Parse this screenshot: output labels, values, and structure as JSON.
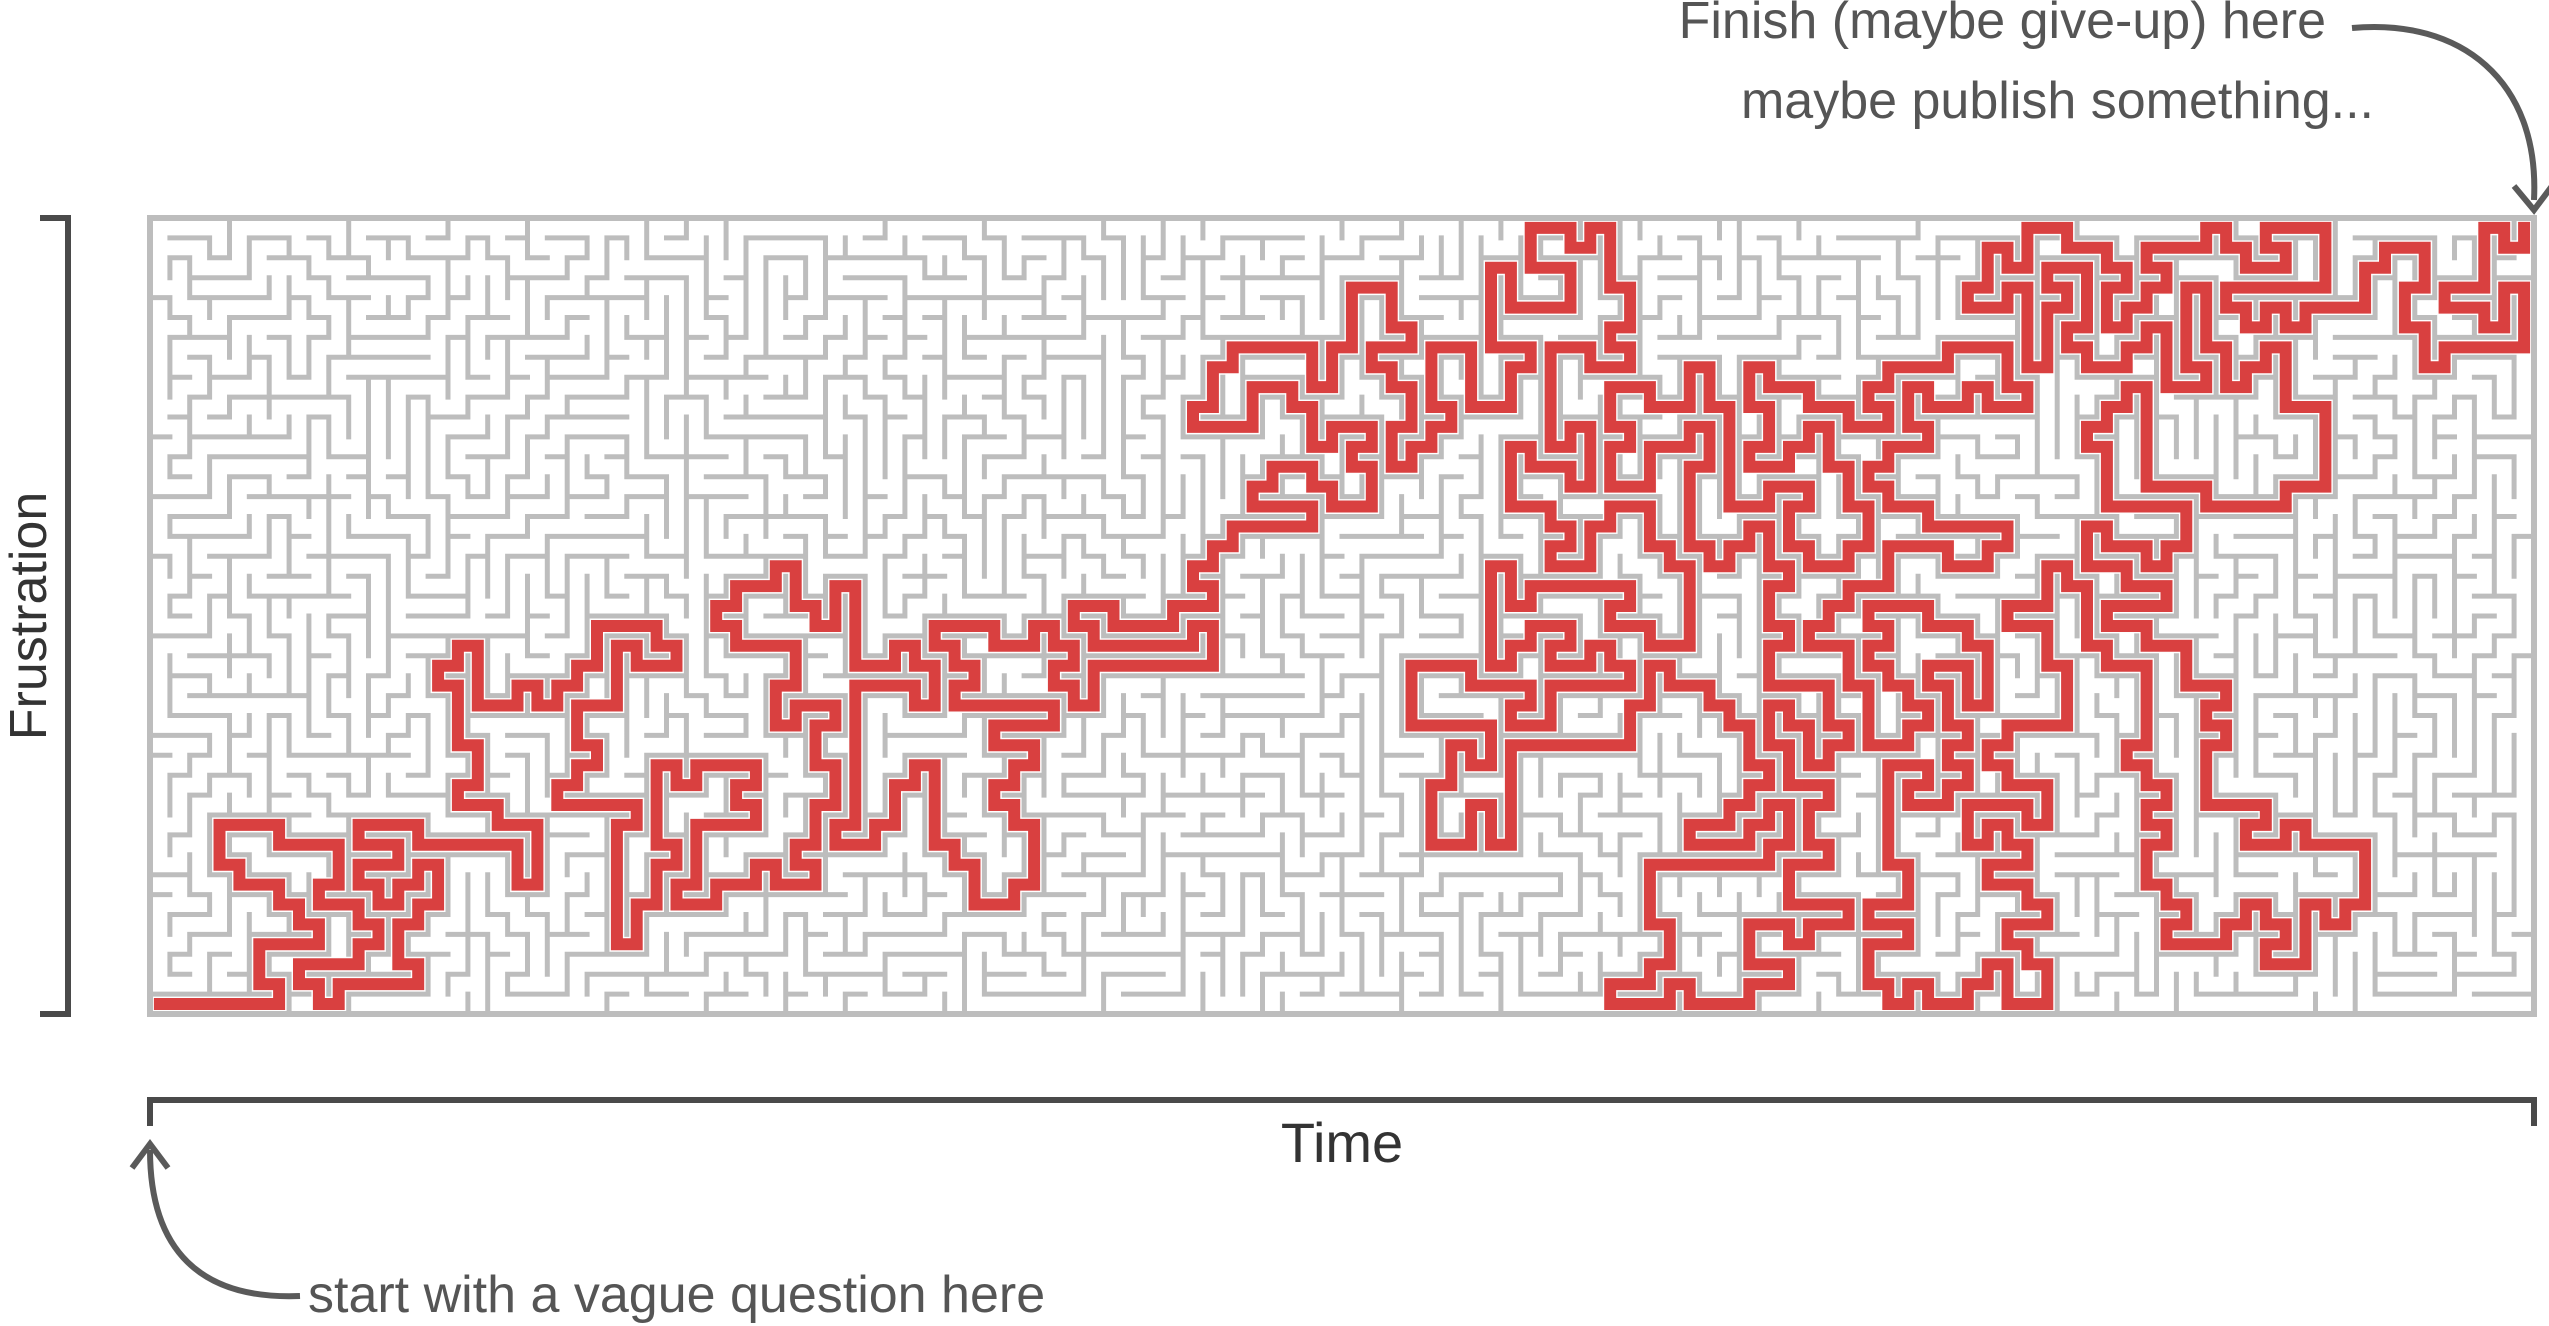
{
  "annotations": {
    "finish_line1": "Finish (maybe give-up) here",
    "finish_line2": "maybe publish something...",
    "start": "start with a vague question here"
  },
  "axes": {
    "y_label": "Frustration",
    "x_label": "Time"
  },
  "colors": {
    "maze_wall": "#bdbdbd",
    "solution_path": "#d94040",
    "bracket": "#4a4a4a",
    "annotation_text": "#555555",
    "arrow": "#5a5a5a"
  }
}
